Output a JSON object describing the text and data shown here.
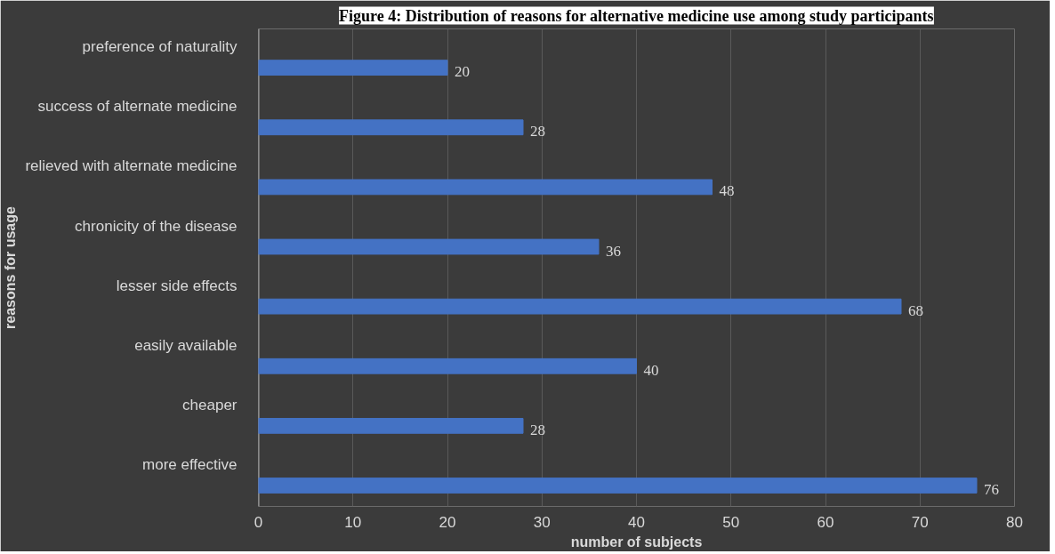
{
  "chart_data": {
    "type": "bar",
    "orientation": "horizontal",
    "title": "Figure 4: Distribution of reasons for alternative medicine use among study participants",
    "xlabel": "number of subjects",
    "ylabel": "reasons for usage",
    "categories": [
      "preference of naturality",
      "success of alternate medicine",
      "relieved with alternate medicine",
      "chronicity of the disease",
      "lesser side effects",
      "easily available",
      "cheaper",
      "more effective"
    ],
    "values": [
      20,
      28,
      48,
      36,
      68,
      40,
      28,
      76
    ],
    "color": "#4472c4",
    "data_labels": true,
    "xlim": [
      0,
      80
    ],
    "xticks": [
      0,
      10,
      20,
      30,
      40,
      50,
      60,
      70,
      80
    ],
    "grid": "x"
  }
}
